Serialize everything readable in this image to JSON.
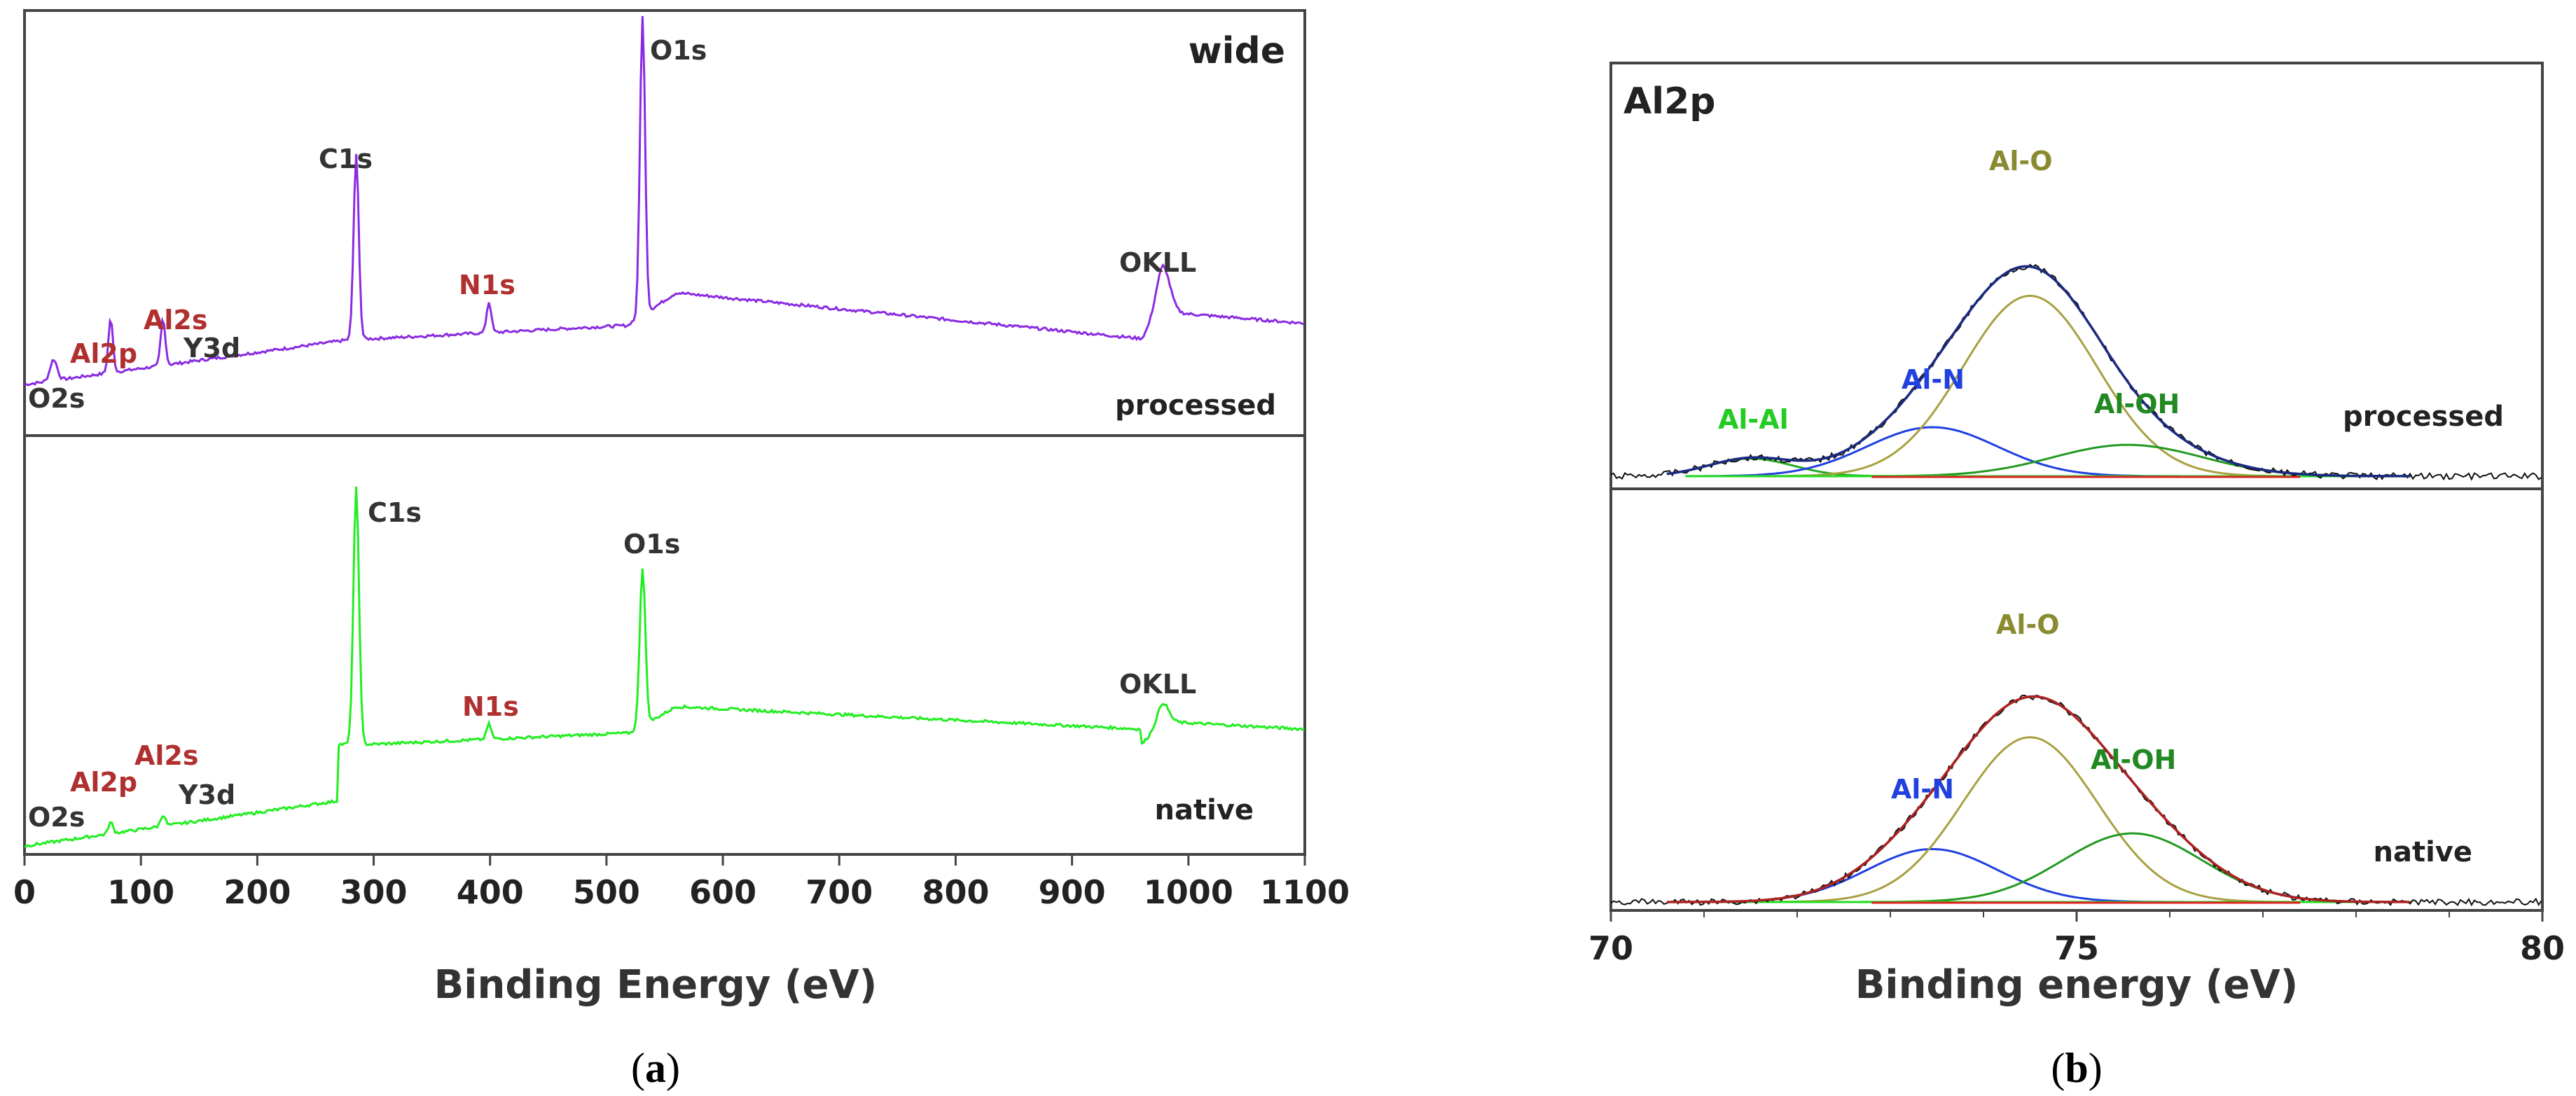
{
  "chart_data": [
    {
      "type": "line",
      "panel_label": "a",
      "corner_label": "wide",
      "xlabel": "Binding Energy (eV)",
      "xlim": [
        0,
        1100
      ],
      "x_ticks": [
        "0",
        "100",
        "200",
        "300",
        "400",
        "500",
        "600",
        "700",
        "800",
        "900",
        "1000",
        "1100"
      ],
      "series": [
        {
          "name": "processed",
          "color": "#8a2be2",
          "peaks": [
            {
              "label": "O2s",
              "x": 25,
              "color": "#333333"
            },
            {
              "label": "Al2p",
              "x": 74,
              "color": "#b03030"
            },
            {
              "label": "Al2s",
              "x": 119,
              "color": "#b03030"
            },
            {
              "label": "Y3d",
              "x": 158,
              "color": "#333333"
            },
            {
              "label": "C1s",
              "x": 285,
              "color": "#333333"
            },
            {
              "label": "N1s",
              "x": 399,
              "color": "#b03030"
            },
            {
              "label": "O1s",
              "x": 531,
              "color": "#333333"
            },
            {
              "label": "OKLL",
              "x": 978,
              "color": "#333333"
            }
          ]
        },
        {
          "name": "native",
          "color": "#22ee22",
          "peaks": [
            {
              "label": "O2s",
              "x": 25,
              "color": "#333333"
            },
            {
              "label": "Al2p",
              "x": 74,
              "color": "#b03030"
            },
            {
              "label": "Al2s",
              "x": 119,
              "color": "#b03030"
            },
            {
              "label": "Y3d",
              "x": 158,
              "color": "#333333"
            },
            {
              "label": "C1s",
              "x": 285,
              "color": "#333333"
            },
            {
              "label": "N1s",
              "x": 399,
              "color": "#b03030"
            },
            {
              "label": "O1s",
              "x": 531,
              "color": "#333333"
            },
            {
              "label": "OKLL",
              "x": 978,
              "color": "#333333"
            }
          ]
        }
      ]
    },
    {
      "type": "line",
      "panel_label": "b",
      "corner_label": "Al2p",
      "xlabel": "Binding energy (eV)",
      "xlim": [
        70,
        80
      ],
      "x_ticks": [
        "70",
        "75",
        "80"
      ],
      "series": [
        {
          "name": "processed",
          "envelope_color": "#1a2a80",
          "components": [
            {
              "label": "Al-Al",
              "center": 71.5,
              "color": "#22aa22",
              "label_color": "#22cc22"
            },
            {
              "label": "Al-N",
              "center": 73.45,
              "color": "#2040e0",
              "label_color": "#2040e0"
            },
            {
              "label": "Al-O",
              "center": 74.5,
              "color": "#a8a040",
              "label_color": "#8a8a30"
            },
            {
              "label": "Al-OH",
              "center": 75.55,
              "color": "#229922",
              "label_color": "#228822"
            }
          ]
        },
        {
          "name": "native",
          "envelope_color": "#aa2222",
          "components": [
            {
              "label": "Al-N",
              "center": 73.45,
              "color": "#2040e0",
              "label_color": "#2040e0"
            },
            {
              "label": "Al-O",
              "center": 74.5,
              "color": "#a8a040",
              "label_color": "#8a8a30"
            },
            {
              "label": "Al-OH",
              "center": 75.6,
              "color": "#229922",
              "label_color": "#228822"
            }
          ]
        }
      ]
    }
  ]
}
